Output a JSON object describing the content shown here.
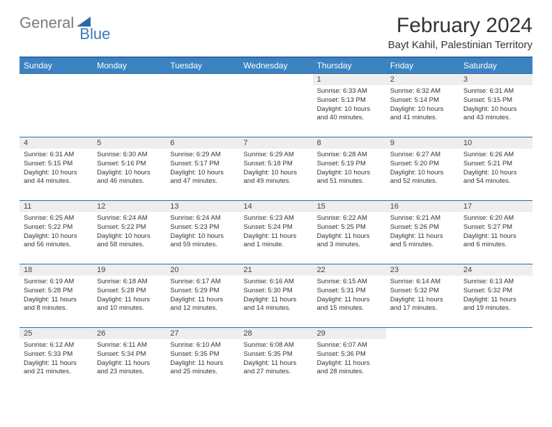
{
  "brand": {
    "word1": "General",
    "word2": "Blue"
  },
  "title": "February 2024",
  "location": "Bayt Kahil, Palestinian Territory",
  "colors": {
    "header_bg": "#3b83c0",
    "header_text": "#ffffff",
    "rule": "#2a6aa8",
    "daynum_bg": "#eeeeee",
    "logo_gray": "#7a7a7a",
    "logo_blue": "#3a7ab8"
  },
  "fonts": {
    "title_size": 30,
    "location_size": 15,
    "dayhdr_size": 12,
    "cell_size": 9.5
  },
  "day_headers": [
    "Sunday",
    "Monday",
    "Tuesday",
    "Wednesday",
    "Thursday",
    "Friday",
    "Saturday"
  ],
  "weeks": [
    [
      {
        "empty": true
      },
      {
        "empty": true
      },
      {
        "empty": true
      },
      {
        "empty": true
      },
      {
        "n": "1",
        "sunrise": "Sunrise: 6:33 AM",
        "sunset": "Sunset: 5:13 PM",
        "daylight": "Daylight: 10 hours and 40 minutes."
      },
      {
        "n": "2",
        "sunrise": "Sunrise: 6:32 AM",
        "sunset": "Sunset: 5:14 PM",
        "daylight": "Daylight: 10 hours and 41 minutes."
      },
      {
        "n": "3",
        "sunrise": "Sunrise: 6:31 AM",
        "sunset": "Sunset: 5:15 PM",
        "daylight": "Daylight: 10 hours and 43 minutes."
      }
    ],
    [
      {
        "n": "4",
        "sunrise": "Sunrise: 6:31 AM",
        "sunset": "Sunset: 5:15 PM",
        "daylight": "Daylight: 10 hours and 44 minutes."
      },
      {
        "n": "5",
        "sunrise": "Sunrise: 6:30 AM",
        "sunset": "Sunset: 5:16 PM",
        "daylight": "Daylight: 10 hours and 46 minutes."
      },
      {
        "n": "6",
        "sunrise": "Sunrise: 6:29 AM",
        "sunset": "Sunset: 5:17 PM",
        "daylight": "Daylight: 10 hours and 47 minutes."
      },
      {
        "n": "7",
        "sunrise": "Sunrise: 6:29 AM",
        "sunset": "Sunset: 5:18 PM",
        "daylight": "Daylight: 10 hours and 49 minutes."
      },
      {
        "n": "8",
        "sunrise": "Sunrise: 6:28 AM",
        "sunset": "Sunset: 5:19 PM",
        "daylight": "Daylight: 10 hours and 51 minutes."
      },
      {
        "n": "9",
        "sunrise": "Sunrise: 6:27 AM",
        "sunset": "Sunset: 5:20 PM",
        "daylight": "Daylight: 10 hours and 52 minutes."
      },
      {
        "n": "10",
        "sunrise": "Sunrise: 6:26 AM",
        "sunset": "Sunset: 5:21 PM",
        "daylight": "Daylight: 10 hours and 54 minutes."
      }
    ],
    [
      {
        "n": "11",
        "sunrise": "Sunrise: 6:25 AM",
        "sunset": "Sunset: 5:22 PM",
        "daylight": "Daylight: 10 hours and 56 minutes."
      },
      {
        "n": "12",
        "sunrise": "Sunrise: 6:24 AM",
        "sunset": "Sunset: 5:22 PM",
        "daylight": "Daylight: 10 hours and 58 minutes."
      },
      {
        "n": "13",
        "sunrise": "Sunrise: 6:24 AM",
        "sunset": "Sunset: 5:23 PM",
        "daylight": "Daylight: 10 hours and 59 minutes."
      },
      {
        "n": "14",
        "sunrise": "Sunrise: 6:23 AM",
        "sunset": "Sunset: 5:24 PM",
        "daylight": "Daylight: 11 hours and 1 minute."
      },
      {
        "n": "15",
        "sunrise": "Sunrise: 6:22 AM",
        "sunset": "Sunset: 5:25 PM",
        "daylight": "Daylight: 11 hours and 3 minutes."
      },
      {
        "n": "16",
        "sunrise": "Sunrise: 6:21 AM",
        "sunset": "Sunset: 5:26 PM",
        "daylight": "Daylight: 11 hours and 5 minutes."
      },
      {
        "n": "17",
        "sunrise": "Sunrise: 6:20 AM",
        "sunset": "Sunset: 5:27 PM",
        "daylight": "Daylight: 11 hours and 6 minutes."
      }
    ],
    [
      {
        "n": "18",
        "sunrise": "Sunrise: 6:19 AM",
        "sunset": "Sunset: 5:28 PM",
        "daylight": "Daylight: 11 hours and 8 minutes."
      },
      {
        "n": "19",
        "sunrise": "Sunrise: 6:18 AM",
        "sunset": "Sunset: 5:28 PM",
        "daylight": "Daylight: 11 hours and 10 minutes."
      },
      {
        "n": "20",
        "sunrise": "Sunrise: 6:17 AM",
        "sunset": "Sunset: 5:29 PM",
        "daylight": "Daylight: 11 hours and 12 minutes."
      },
      {
        "n": "21",
        "sunrise": "Sunrise: 6:16 AM",
        "sunset": "Sunset: 5:30 PM",
        "daylight": "Daylight: 11 hours and 14 minutes."
      },
      {
        "n": "22",
        "sunrise": "Sunrise: 6:15 AM",
        "sunset": "Sunset: 5:31 PM",
        "daylight": "Daylight: 11 hours and 15 minutes."
      },
      {
        "n": "23",
        "sunrise": "Sunrise: 6:14 AM",
        "sunset": "Sunset: 5:32 PM",
        "daylight": "Daylight: 11 hours and 17 minutes."
      },
      {
        "n": "24",
        "sunrise": "Sunrise: 6:13 AM",
        "sunset": "Sunset: 5:32 PM",
        "daylight": "Daylight: 11 hours and 19 minutes."
      }
    ],
    [
      {
        "n": "25",
        "sunrise": "Sunrise: 6:12 AM",
        "sunset": "Sunset: 5:33 PM",
        "daylight": "Daylight: 11 hours and 21 minutes."
      },
      {
        "n": "26",
        "sunrise": "Sunrise: 6:11 AM",
        "sunset": "Sunset: 5:34 PM",
        "daylight": "Daylight: 11 hours and 23 minutes."
      },
      {
        "n": "27",
        "sunrise": "Sunrise: 6:10 AM",
        "sunset": "Sunset: 5:35 PM",
        "daylight": "Daylight: 11 hours and 25 minutes."
      },
      {
        "n": "28",
        "sunrise": "Sunrise: 6:08 AM",
        "sunset": "Sunset: 5:35 PM",
        "daylight": "Daylight: 11 hours and 27 minutes."
      },
      {
        "n": "29",
        "sunrise": "Sunrise: 6:07 AM",
        "sunset": "Sunset: 5:36 PM",
        "daylight": "Daylight: 11 hours and 28 minutes."
      },
      {
        "empty": true
      },
      {
        "empty": true
      }
    ]
  ]
}
